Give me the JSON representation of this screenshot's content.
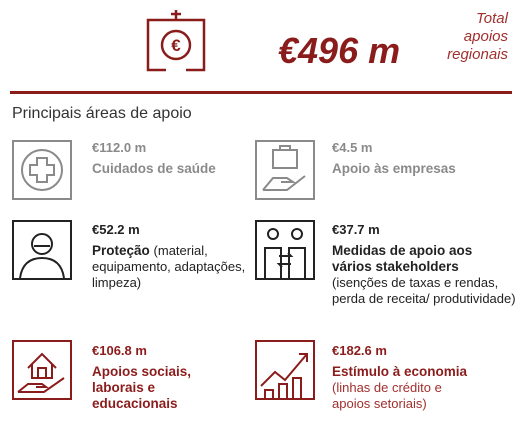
{
  "header": {
    "total": "€496 m",
    "caption": "Total apoios regionais"
  },
  "section_title": "Principais áreas de apoio",
  "items": [
    {
      "amount": "€112.0 m",
      "title": "Cuidados de saúde"
    },
    {
      "amount": "€4.5 m",
      "title": "Apoio às empresas"
    },
    {
      "amount": "€52.2 m",
      "title": "Proteção",
      "detail": "(material, equipamento, adaptações, limpeza)"
    },
    {
      "amount": "€37.7 m",
      "title": "Medidas de apoio aos vários stakeholders",
      "detail": "(isenções de taxas e rendas, perda de receita/ produtividade)"
    },
    {
      "amount": "€106.8 m",
      "title": "Apoios sociais, laborais e educacionais"
    },
    {
      "amount": "€182.6 m",
      "title": "Estímulo à economia",
      "detail": "(linhas de crédito e apoios setoriais)"
    }
  ]
}
